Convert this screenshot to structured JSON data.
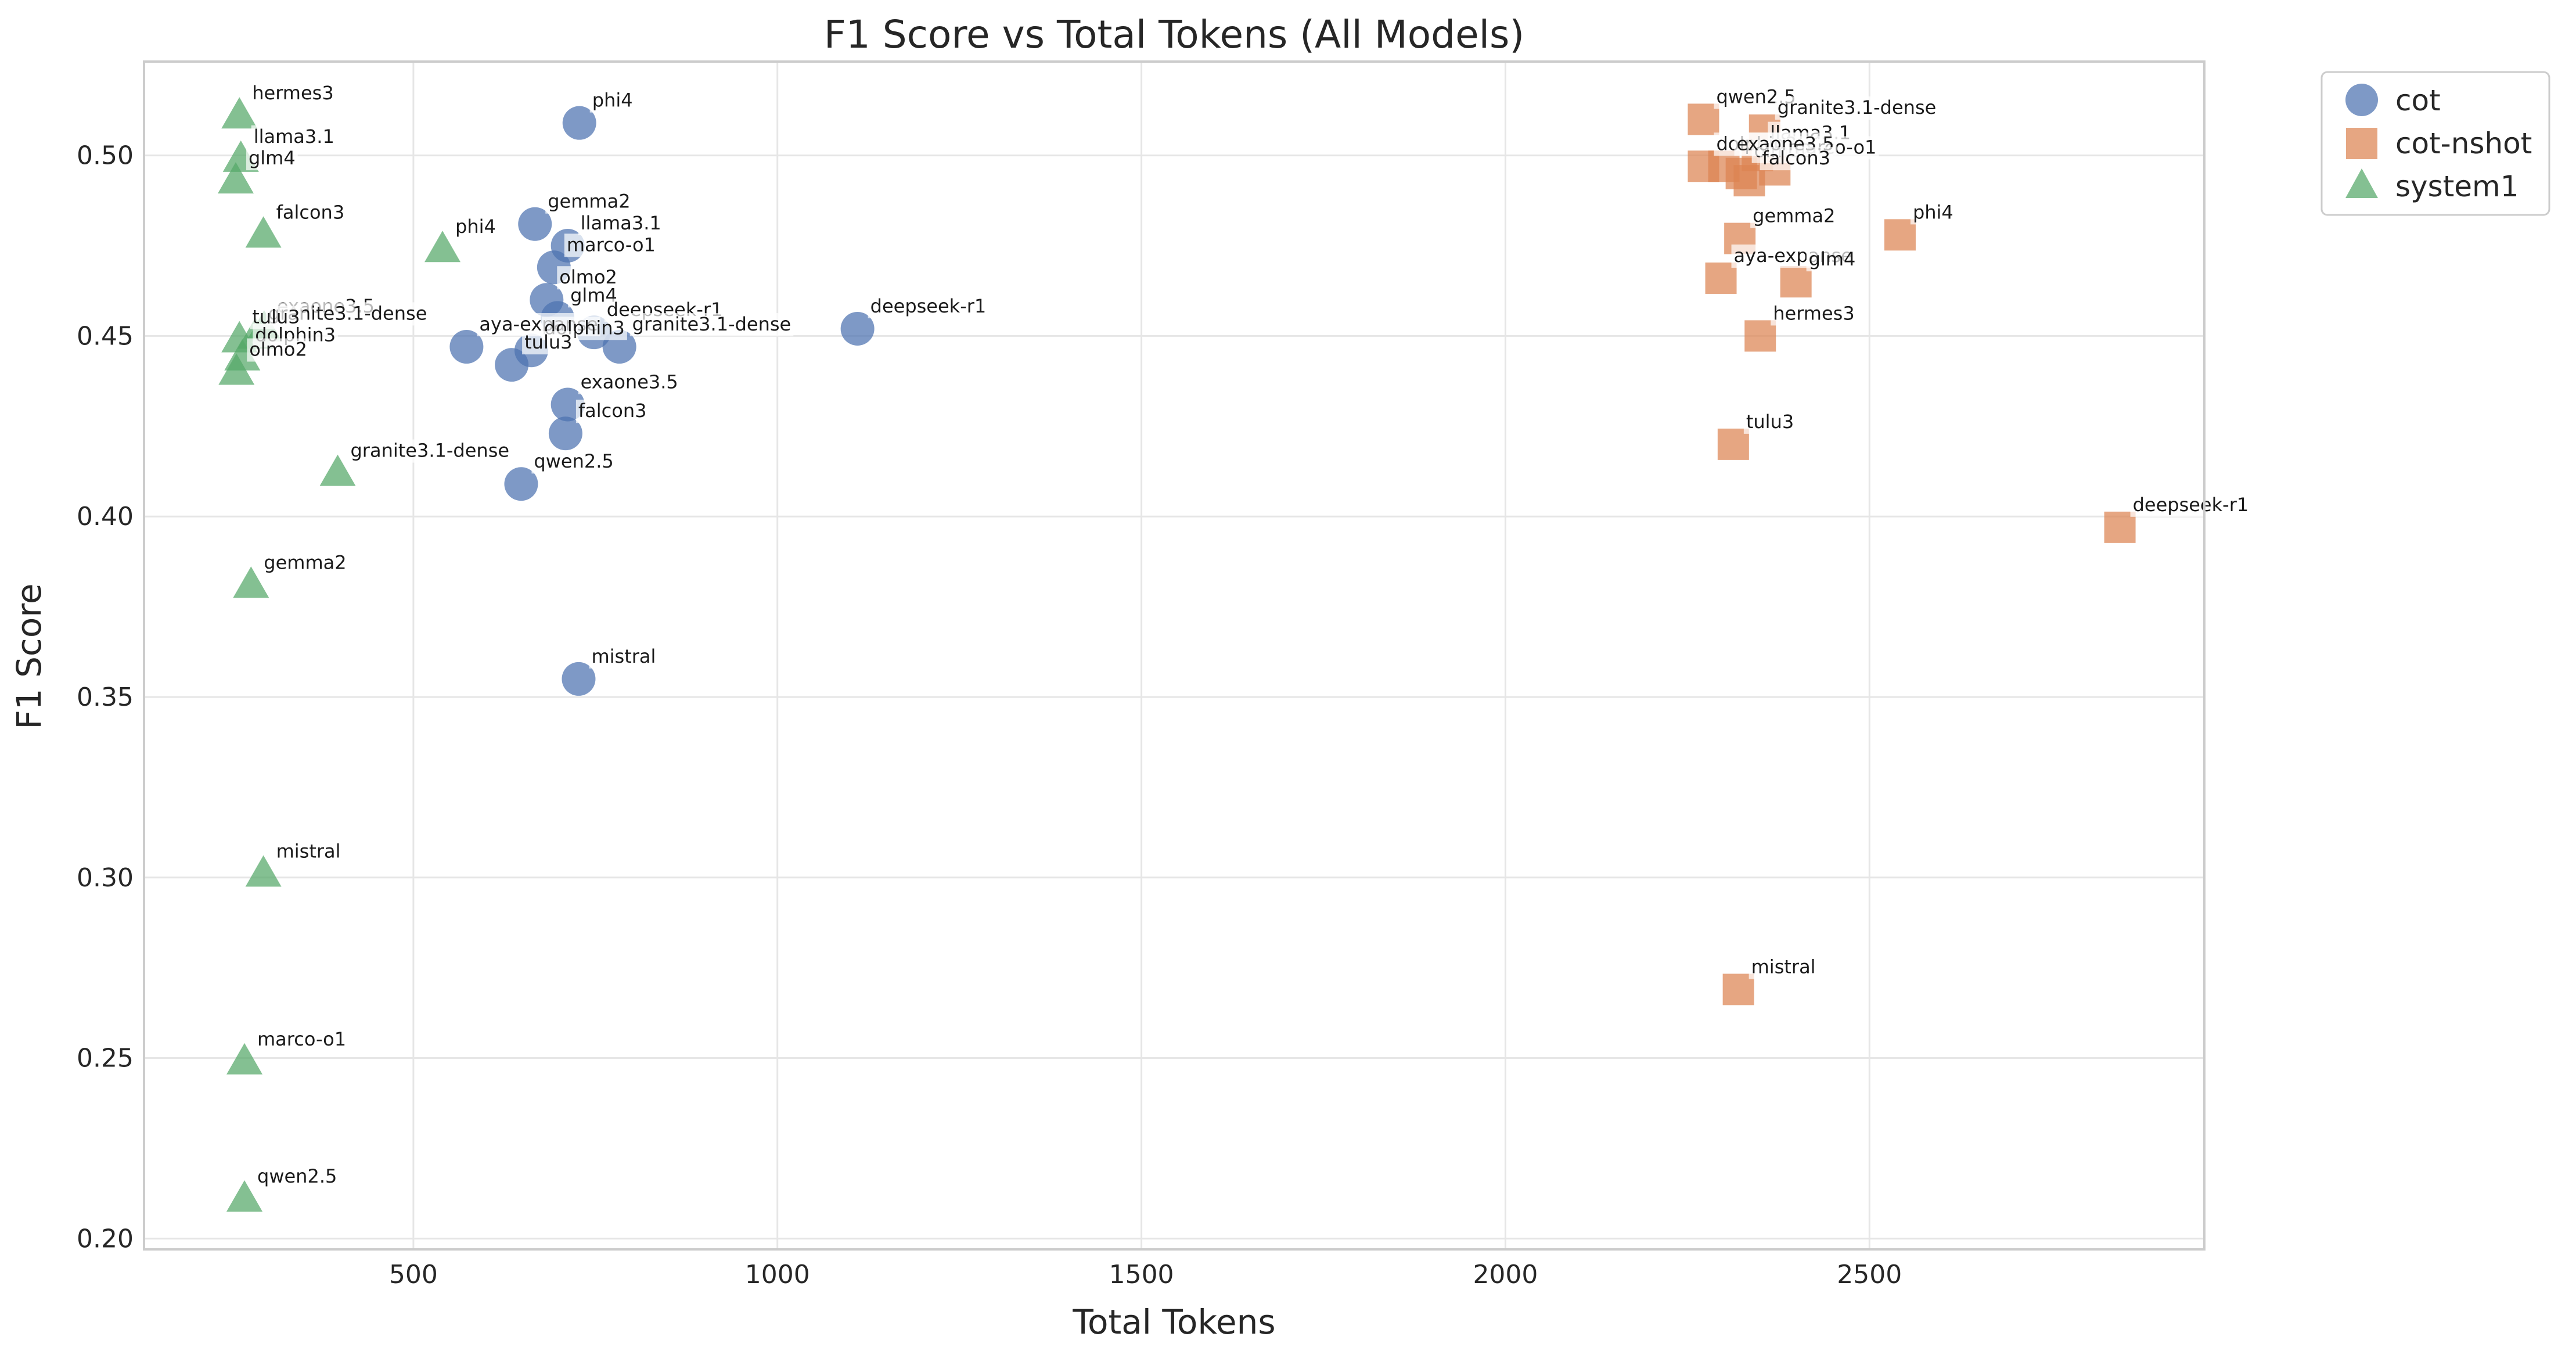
{
  "chart_data": {
    "type": "scatter",
    "title": "F1 Score vs Total Tokens (All Models)",
    "xlabel": "Total Tokens",
    "ylabel": "F1 Score",
    "xlim": [
      130,
      2960
    ],
    "ylim": [
      0.197,
      0.526
    ],
    "xticks": [
      500,
      1000,
      1500,
      2000,
      2500
    ],
    "xtick_labels": [
      "500",
      "1000",
      "1500",
      "2000",
      "2500"
    ],
    "yticks": [
      0.2,
      0.25,
      0.3,
      0.35,
      0.4,
      0.45,
      0.5
    ],
    "ytick_labels": [
      "0.20",
      "0.25",
      "0.30",
      "0.35",
      "0.40",
      "0.45",
      "0.50"
    ],
    "grid": true,
    "legend_position": "outside-top-right",
    "series": [
      {
        "name": "cot",
        "marker": "circle",
        "color": "#4c72b0",
        "points": [
          {
            "label": "phi4",
            "x": 728,
            "y": 0.509
          },
          {
            "label": "gemma2",
            "x": 667,
            "y": 0.481
          },
          {
            "label": "llama3.1",
            "x": 712,
            "y": 0.475
          },
          {
            "label": "marco-o1",
            "x": 693,
            "y": 0.469
          },
          {
            "label": "olmo2",
            "x": 683,
            "y": 0.46
          },
          {
            "label": "glm4",
            "x": 698,
            "y": 0.455
          },
          {
            "label": "deepseek-r1",
            "x": 1110,
            "y": 0.452
          },
          {
            "label": "deepseek-r1",
            "x": 748,
            "y": 0.451
          },
          {
            "label": "granite3.1-dense",
            "x": 783,
            "y": 0.447
          },
          {
            "label": "aya-expanse",
            "x": 573,
            "y": 0.447
          },
          {
            "label": "dolphin3",
            "x": 662,
            "y": 0.446
          },
          {
            "label": "tulu3",
            "x": 635,
            "y": 0.442
          },
          {
            "label": "exaone3.5",
            "x": 712,
            "y": 0.431
          },
          {
            "label": "falcon3",
            "x": 709,
            "y": 0.423
          },
          {
            "label": "qwen2.5",
            "x": 648,
            "y": 0.409
          },
          {
            "label": "mistral",
            "x": 727,
            "y": 0.355
          }
        ]
      },
      {
        "name": "cot-nshot",
        "marker": "square",
        "color": "#dd8452",
        "points": [
          {
            "label": "qwen2.5",
            "x": 2272,
            "y": 0.51
          },
          {
            "label": "granite3.1-dense",
            "x": 2356,
            "y": 0.507
          },
          {
            "label": "llama3.1",
            "x": 2346,
            "y": 0.5
          },
          {
            "label": "dolphin3",
            "x": 2272,
            "y": 0.497
          },
          {
            "label": "olmo2",
            "x": 2324,
            "y": 0.495
          },
          {
            "label": "marco-o1",
            "x": 2370,
            "y": 0.496
          },
          {
            "label": "exaone3.5",
            "x": 2300,
            "y": 0.497
          },
          {
            "label": "falcon3",
            "x": 2335,
            "y": 0.493
          },
          {
            "label": "phi4",
            "x": 2542,
            "y": 0.478
          },
          {
            "label": "gemma2",
            "x": 2322,
            "y": 0.477
          },
          {
            "label": "aya-expanse",
            "x": 2296,
            "y": 0.466
          },
          {
            "label": "glm4",
            "x": 2399,
            "y": 0.465
          },
          {
            "label": "hermes3",
            "x": 2350,
            "y": 0.45
          },
          {
            "label": "tulu3",
            "x": 2313,
            "y": 0.42
          },
          {
            "label": "deepseek-r1",
            "x": 2844,
            "y": 0.397
          },
          {
            "label": "mistral",
            "x": 2320,
            "y": 0.269
          }
        ]
      },
      {
        "name": "system1",
        "marker": "triangle",
        "color": "#55a868",
        "points": [
          {
            "label": "hermes3",
            "x": 261,
            "y": 0.511
          },
          {
            "label": "llama3.1",
            "x": 263,
            "y": 0.499
          },
          {
            "label": "glm4",
            "x": 256,
            "y": 0.493
          },
          {
            "label": "falcon3",
            "x": 294,
            "y": 0.478
          },
          {
            "label": "phi4",
            "x": 540,
            "y": 0.474
          },
          {
            "label": "exaone3.5",
            "x": 295,
            "y": 0.452
          },
          {
            "label": "granite3.1-dense",
            "x": 283,
            "y": 0.45
          },
          {
            "label": "tulu3",
            "x": 261,
            "y": 0.449
          },
          {
            "label": "dolphin3",
            "x": 265,
            "y": 0.444
          },
          {
            "label": "olmo2",
            "x": 257,
            "y": 0.44
          },
          {
            "label": "granite3.1-dense",
            "x": 396,
            "y": 0.412
          },
          {
            "label": "gemma2",
            "x": 277,
            "y": 0.381
          },
          {
            "label": "mistral",
            "x": 294,
            "y": 0.301
          },
          {
            "label": "marco-o1",
            "x": 268,
            "y": 0.249
          },
          {
            "label": "qwen2.5",
            "x": 268,
            "y": 0.211
          }
        ]
      }
    ]
  }
}
